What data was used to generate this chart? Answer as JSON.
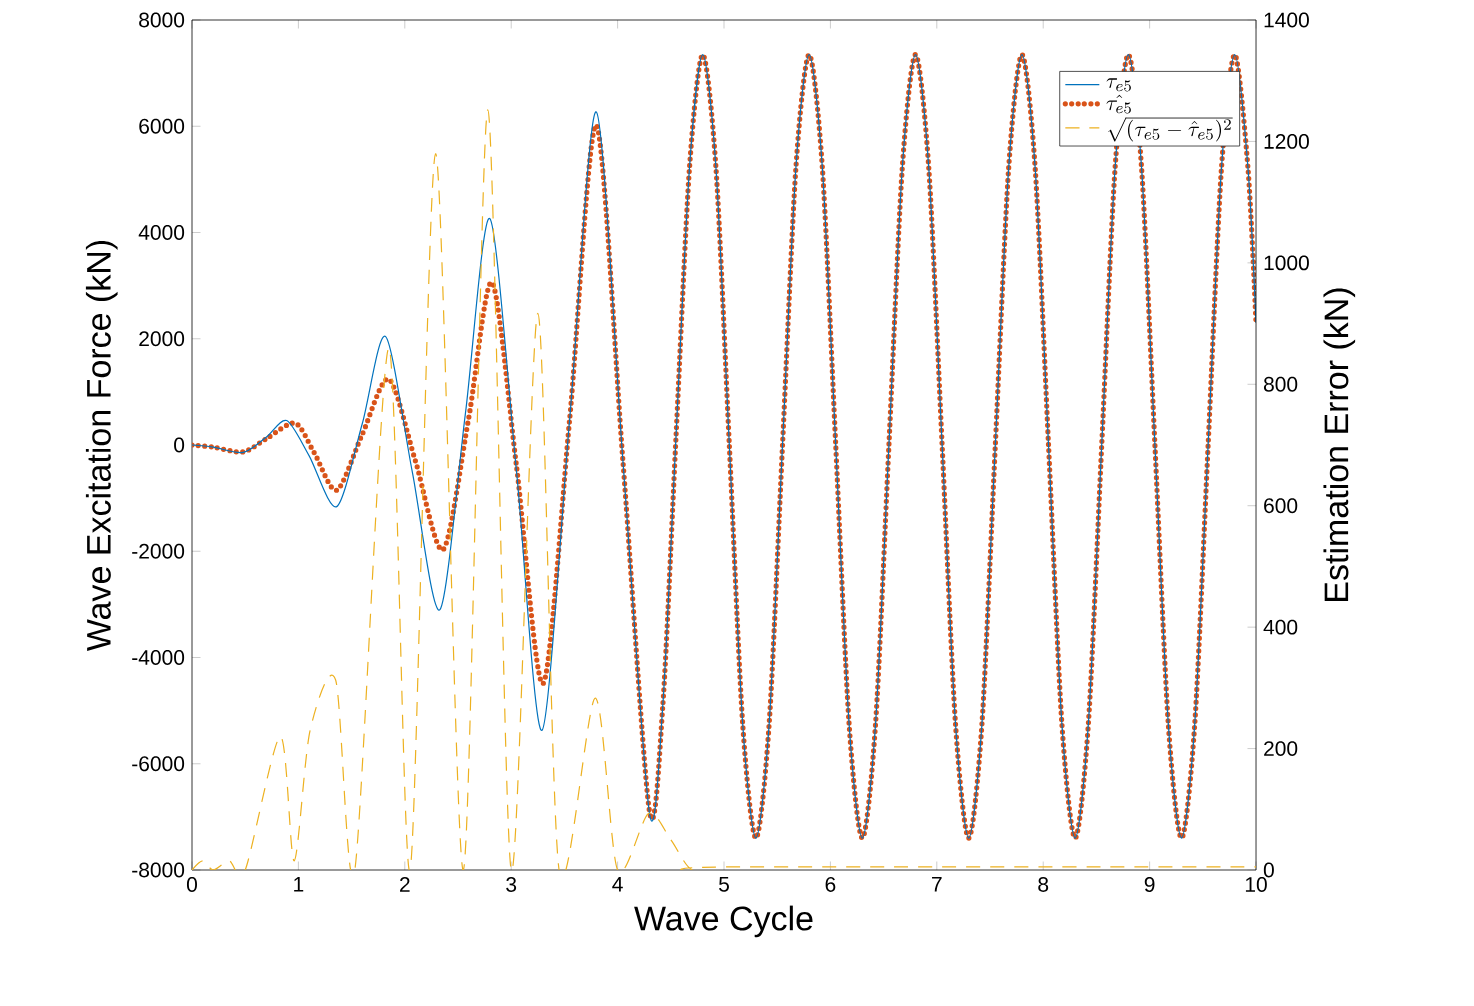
{
  "chart_data": {
    "type": "line",
    "xlabel": "Wave Cycle",
    "ylabel": "Wave Excitation Force (kN)",
    "y2label": "Estimation Error (kN)",
    "xlim": [
      0,
      10
    ],
    "xticks": [
      0,
      1,
      2,
      3,
      4,
      5,
      6,
      7,
      8,
      9,
      10
    ],
    "ylim": [
      -8000,
      8000
    ],
    "yticks": [
      -8000,
      -6000,
      -4000,
      -2000,
      0,
      2000,
      4000,
      6000,
      8000
    ],
    "y2lim": [
      0,
      1400
    ],
    "y2ticks": [
      0,
      200,
      400,
      600,
      800,
      1000,
      1200,
      1400
    ],
    "legend": "top right",
    "series": [
      {
        "name": "\\tau_{e5}",
        "line_style": "solid",
        "color": "#0072bd",
        "x": [
          0,
          0.2,
          0.48,
          0.7,
          0.89,
          1.1,
          1.36,
          1.6,
          1.82,
          2.07,
          2.33,
          2.57,
          2.8,
          3.05,
          3.29,
          3.55,
          3.8,
          4.05,
          4.3,
          4.425,
          4.55,
          4.675,
          4.8,
          4.925,
          5.05,
          5.175,
          5.3,
          5.425,
          5.55,
          5.675,
          5.8,
          5.925,
          6.05,
          6.175,
          6.3,
          6.425,
          6.55,
          6.675,
          6.8,
          6.925,
          7.05,
          7.175,
          7.3,
          7.425,
          7.55,
          7.675,
          7.8,
          7.925,
          8.05,
          8.175,
          8.3,
          8.425,
          8.55,
          8.675,
          8.8,
          8.925,
          9.05,
          9.175,
          9.3,
          9.425,
          9.55,
          9.675,
          9.8,
          9.925,
          10
        ],
        "values": [
          0,
          -40,
          -140,
          150,
          460,
          -200,
          -1160,
          400,
          2040,
          -500,
          -3100,
          600,
          4260,
          -500,
          -5370,
          500,
          6270,
          -300,
          -6940,
          -4900,
          200,
          5200,
          7350,
          5200,
          0,
          -5230,
          -7400,
          -5230,
          0,
          5200,
          7350,
          5200,
          0,
          -5230,
          -7400,
          -5230,
          0,
          5200,
          7350,
          5200,
          0,
          -5230,
          -7400,
          -5230,
          0,
          5200,
          7350,
          5200,
          0,
          -5230,
          -7400,
          -5230,
          0,
          5200,
          7350,
          5200,
          0,
          -5230,
          -7400,
          -5230,
          0,
          5200,
          7350,
          5200,
          2300
        ]
      },
      {
        "name": "\\hat{\\tau_{e5}}",
        "line_style": "dotted",
        "color": "#d95319",
        "x": [
          0,
          0.2,
          0.48,
          0.7,
          0.97,
          1.15,
          1.36,
          1.6,
          1.85,
          2.1,
          2.36,
          2.6,
          2.82,
          3.05,
          3.3,
          3.55,
          3.8,
          4.05,
          4.3,
          4.425,
          4.55,
          4.675,
          4.8,
          4.925,
          5.05,
          5.175,
          5.3,
          5.425,
          5.55,
          5.675,
          5.8,
          5.925,
          6.05,
          6.175,
          6.3,
          6.425,
          6.55,
          6.675,
          6.8,
          6.925,
          7.05,
          7.175,
          7.3,
          7.425,
          7.55,
          7.675,
          7.8,
          7.925,
          8.05,
          8.175,
          8.3,
          8.425,
          8.55,
          8.675,
          8.8,
          8.925,
          9.05,
          9.175,
          9.3,
          9.425,
          9.55,
          9.675,
          9.8,
          9.925,
          10
        ],
        "values": [
          0,
          -40,
          -130,
          120,
          410,
          -150,
          -850,
          200,
          1240,
          -300,
          -1970,
          500,
          3060,
          -400,
          -4490,
          500,
          6020,
          -300,
          -6900,
          -4900,
          200,
          5200,
          7350,
          5200,
          0,
          -5230,
          -7400,
          -5230,
          0,
          5200,
          7350,
          5200,
          0,
          -5230,
          -7400,
          -5230,
          0,
          5200,
          7350,
          5200,
          0,
          -5230,
          -7400,
          -5230,
          0,
          5200,
          7350,
          5200,
          0,
          -5230,
          -7400,
          -5230,
          0,
          5200,
          7350,
          5200,
          0,
          -5230,
          -7400,
          -5230,
          0,
          5200,
          7350,
          5200,
          2300
        ]
      },
      {
        "name": "\\sqrt{(\\tau_{e5}-\\hat{\\tau}_{e5})^2}",
        "line_style": "dashed",
        "color": "#edb120",
        "axis": "y2",
        "x": [
          0,
          0.1,
          0.2,
          0.35,
          0.5,
          0.83,
          0.96,
          1.11,
          1.35,
          1.53,
          1.85,
          2.05,
          2.29,
          2.55,
          2.78,
          3.0,
          3.25,
          3.45,
          3.79,
          4.0,
          4.29,
          4.5,
          4.7,
          5.0,
          10
        ],
        "values": [
          0,
          15,
          0,
          15,
          0,
          220,
          15,
          230,
          313,
          0,
          860,
          0,
          1180,
          0,
          1252,
          0,
          917,
          0,
          283,
          0,
          93,
          50,
          0,
          5,
          5
        ]
      }
    ]
  }
}
